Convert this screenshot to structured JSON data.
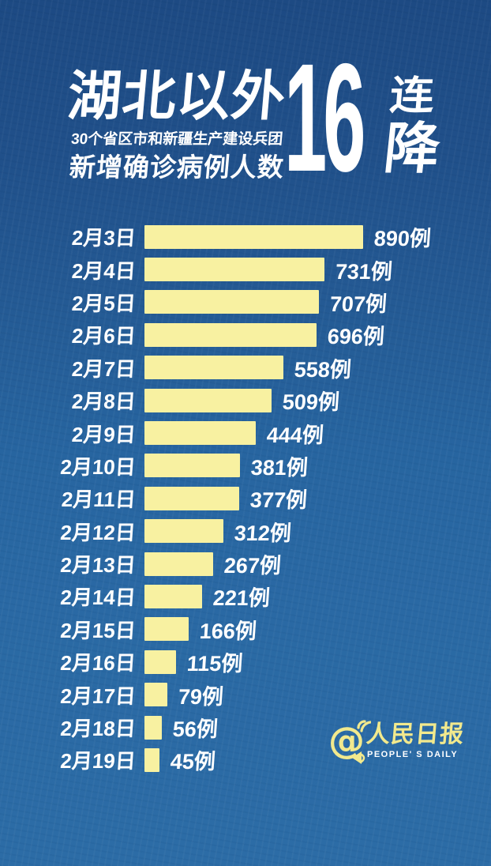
{
  "header": {
    "title": "湖北以外",
    "subtitle_line1": "30个省区市和新疆生产建设兵团",
    "subtitle_line2": "新增确诊病例人数",
    "streak_number": "16",
    "streak_char_top": "连",
    "streak_char_bottom": "降"
  },
  "chart_data": {
    "type": "bar",
    "orientation": "horizontal",
    "title": "湖北以外新增确诊病例人数",
    "subtitle": "30个省区市和新疆生产建设兵团",
    "annotation": "16连降",
    "categories": [
      "2月3日",
      "2月4日",
      "2月5日",
      "2月6日",
      "2月7日",
      "2月8日",
      "2月9日",
      "2月10日",
      "2月11日",
      "2月12日",
      "2月13日",
      "2月14日",
      "2月15日",
      "2月16日",
      "2月17日",
      "2月18日",
      "2月19日"
    ],
    "values": [
      890,
      731,
      707,
      696,
      558,
      509,
      444,
      381,
      377,
      312,
      267,
      221,
      166,
      115,
      79,
      56,
      45
    ],
    "unit_suffix": "例",
    "value_labels": [
      "890例",
      "731例",
      "707例",
      "696例",
      "558例",
      "509例",
      "444例",
      "381例",
      "377例",
      "312例",
      "267例",
      "221例",
      "166例",
      "115例",
      "79例",
      "56例",
      "45例"
    ],
    "xlim": [
      0,
      890
    ],
    "grid": false,
    "legend": false,
    "bar_color": "#f8f1a1",
    "label_color": "#ffffff"
  },
  "footer": {
    "at_symbol": "@",
    "logo_cn": "人民日报",
    "logo_en": "PEOPLE' S DAILY"
  },
  "colors": {
    "background_top": "#1d4a83",
    "background_bottom": "#2c6ca6",
    "bar_yellow": "#f8f1a1",
    "logo_yellow": "#f2e98d",
    "text_white": "#ffffff"
  }
}
